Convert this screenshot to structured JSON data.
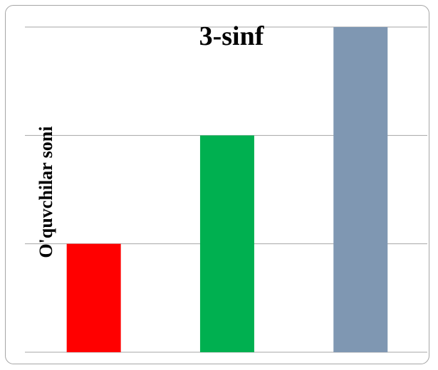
{
  "chart_data": {
    "type": "bar",
    "title": "3-sinf",
    "ylabel": "O'quvchilar soni",
    "xlabel": "",
    "categories": [
      "",
      "",
      ""
    ],
    "values": [
      1,
      2,
      3
    ],
    "ylim": [
      0,
      3
    ],
    "gridlines": [
      0,
      1,
      2,
      3
    ],
    "grid": true,
    "legend": "none",
    "bar_colors": [
      "#ff0000",
      "#00b050",
      "#7f97b2"
    ],
    "grid_color": "#a6a6a6"
  }
}
